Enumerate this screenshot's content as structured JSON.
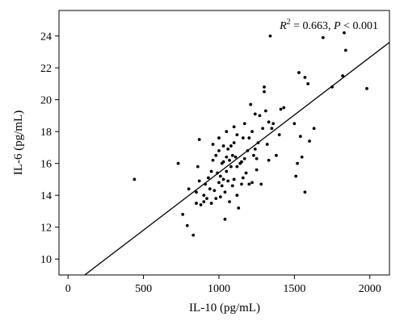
{
  "chart_data": {
    "type": "scatter",
    "xlabel": "IL-10 (pg/mL)",
    "ylabel": "IL-6 (pg/mL)",
    "xlim": [
      -60,
      2130
    ],
    "ylim": [
      9,
      25.6
    ],
    "xticks": [
      0,
      500,
      1000,
      1500,
      2000
    ],
    "yticks": [
      10,
      12,
      14,
      16,
      18,
      20,
      22,
      24
    ],
    "annotation": {
      "r2_prefix": "R",
      "r2_exponent": "2",
      "r2_value": " = 0.663, ",
      "p_symbol": "P",
      "p_value": " < 0.001"
    },
    "fit_line": {
      "slope": 0.00723,
      "intercept": 8.2
    },
    "grid": false,
    "points": [
      [
        440,
        15.0
      ],
      [
        730,
        16.0
      ],
      [
        760,
        12.8
      ],
      [
        790,
        12.1
      ],
      [
        800,
        14.4
      ],
      [
        830,
        11.5
      ],
      [
        850,
        13.5
      ],
      [
        850,
        14.2
      ],
      [
        860,
        15.8
      ],
      [
        870,
        14.9
      ],
      [
        870,
        17.5
      ],
      [
        880,
        13.4
      ],
      [
        900,
        13.6
      ],
      [
        900,
        14.0
      ],
      [
        910,
        14.7
      ],
      [
        920,
        13.8
      ],
      [
        930,
        15.1
      ],
      [
        940,
        14.4
      ],
      [
        950,
        13.5
      ],
      [
        950,
        15.5
      ],
      [
        960,
        16.2
      ],
      [
        960,
        17.2
      ],
      [
        970,
        14.3
      ],
      [
        980,
        13.8
      ],
      [
        980,
        16.5
      ],
      [
        990,
        15.4
      ],
      [
        1000,
        14.8
      ],
      [
        1000,
        17.6
      ],
      [
        1000,
        16.8
      ],
      [
        1010,
        15.2
      ],
      [
        1010,
        13.9
      ],
      [
        1020,
        16.0
      ],
      [
        1020,
        14.6
      ],
      [
        1030,
        15.0
      ],
      [
        1030,
        16.1
      ],
      [
        1030,
        17.1
      ],
      [
        1040,
        14.2
      ],
      [
        1040,
        12.5
      ],
      [
        1050,
        15.5
      ],
      [
        1050,
        16.4
      ],
      [
        1050,
        18.0
      ],
      [
        1060,
        14.9
      ],
      [
        1060,
        16.9
      ],
      [
        1070,
        13.6
      ],
      [
        1070,
        16.2
      ],
      [
        1080,
        15.8
      ],
      [
        1080,
        17.1
      ],
      [
        1090,
        14.6
      ],
      [
        1090,
        16.5
      ],
      [
        1100,
        15.0
      ],
      [
        1100,
        18.3
      ],
      [
        1100,
        17.3
      ],
      [
        1110,
        16.4
      ],
      [
        1120,
        14.0
      ],
      [
        1120,
        15.8
      ],
      [
        1120,
        17.8
      ],
      [
        1130,
        13.2
      ],
      [
        1140,
        16.0
      ],
      [
        1150,
        16.1
      ],
      [
        1150,
        14.7
      ],
      [
        1160,
        15.1
      ],
      [
        1160,
        17.6
      ],
      [
        1170,
        16.3
      ],
      [
        1170,
        18.5
      ],
      [
        1180,
        15.4
      ],
      [
        1190,
        16.8
      ],
      [
        1200,
        14.7
      ],
      [
        1200,
        17.6
      ],
      [
        1210,
        19.7
      ],
      [
        1220,
        18.0
      ],
      [
        1220,
        14.8
      ],
      [
        1230,
        16.5
      ],
      [
        1240,
        16.9
      ],
      [
        1240,
        19.1
      ],
      [
        1250,
        15.6
      ],
      [
        1250,
        16.3
      ],
      [
        1260,
        17.3
      ],
      [
        1270,
        19.0
      ],
      [
        1280,
        14.7
      ],
      [
        1290,
        18.2
      ],
      [
        1300,
        20.8
      ],
      [
        1300,
        20.5
      ],
      [
        1310,
        19.3
      ],
      [
        1320,
        17.2
      ],
      [
        1330,
        16.2
      ],
      [
        1330,
        18.6
      ],
      [
        1340,
        24.0
      ],
      [
        1350,
        18.2
      ],
      [
        1360,
        18.5
      ],
      [
        1380,
        16.5
      ],
      [
        1400,
        17.8
      ],
      [
        1410,
        19.4
      ],
      [
        1430,
        19.5
      ],
      [
        1500,
        18.5
      ],
      [
        1510,
        15.2
      ],
      [
        1520,
        16.0
      ],
      [
        1530,
        21.7
      ],
      [
        1540,
        17.7
      ],
      [
        1550,
        16.4
      ],
      [
        1570,
        14.2
      ],
      [
        1570,
        21.4
      ],
      [
        1590,
        21.0
      ],
      [
        1600,
        17.4
      ],
      [
        1630,
        18.2
      ],
      [
        1690,
        23.9
      ],
      [
        1750,
        20.8
      ],
      [
        1820,
        21.5
      ],
      [
        1830,
        24.2
      ],
      [
        1840,
        23.1
      ],
      [
        1980,
        20.7
      ]
    ]
  }
}
